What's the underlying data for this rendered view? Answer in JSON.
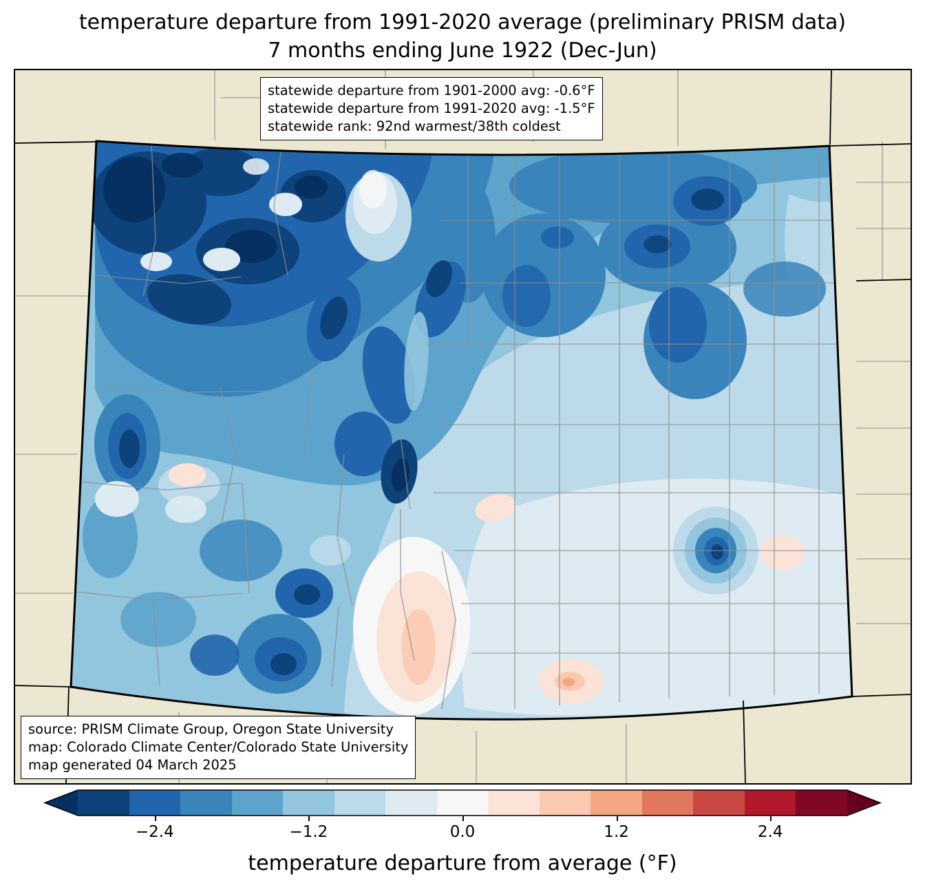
{
  "title": {
    "line1": "temperature departure from 1991-2020 average (preliminary PRISM data)",
    "line2": "7 months ending June 1922 (Dec-Jun)"
  },
  "stats_box": {
    "line1": "statewide departure from 1901-2000 avg: -0.6°F",
    "line2": "statewide departure from 1991-2020 avg: -1.5°F",
    "line3": "statewide rank: 92nd warmest/38th coldest"
  },
  "source_box": {
    "line1": "source: PRISM Climate Group, Oregon State University",
    "line2": "map: Colorado Climate Center/Colorado State University",
    "line3": "map generated 04 March 2025"
  },
  "colorbar": {
    "label": "temperature departure from average (°F)",
    "tick_labels": [
      "−2.4",
      "−1.2",
      "0.0",
      "1.2",
      "2.4"
    ],
    "tick_values": [
      -2.4,
      -1.2,
      0.0,
      1.2,
      2.4
    ],
    "value_range": [
      -3.0,
      3.0
    ],
    "segment_colors": [
      "#0e427a",
      "#2166ac",
      "#3884bb",
      "#5da4cc",
      "#92c5de",
      "#bcdaea",
      "#deebf2",
      "#f7f7f7",
      "#fbe4d7",
      "#fac9b0",
      "#f4a582",
      "#e0775e",
      "#ca4842",
      "#b2182b",
      "#800823"
    ],
    "under_arrow_color": "#053061",
    "over_arrow_color": "#67001f",
    "outline_color": "#000000"
  },
  "map": {
    "region": "Colorado",
    "background_color": "#ece7d1",
    "county_line_color": "#8f8f8f",
    "state_border_color": "#000000",
    "neighbor_border_color": "#000000"
  }
}
